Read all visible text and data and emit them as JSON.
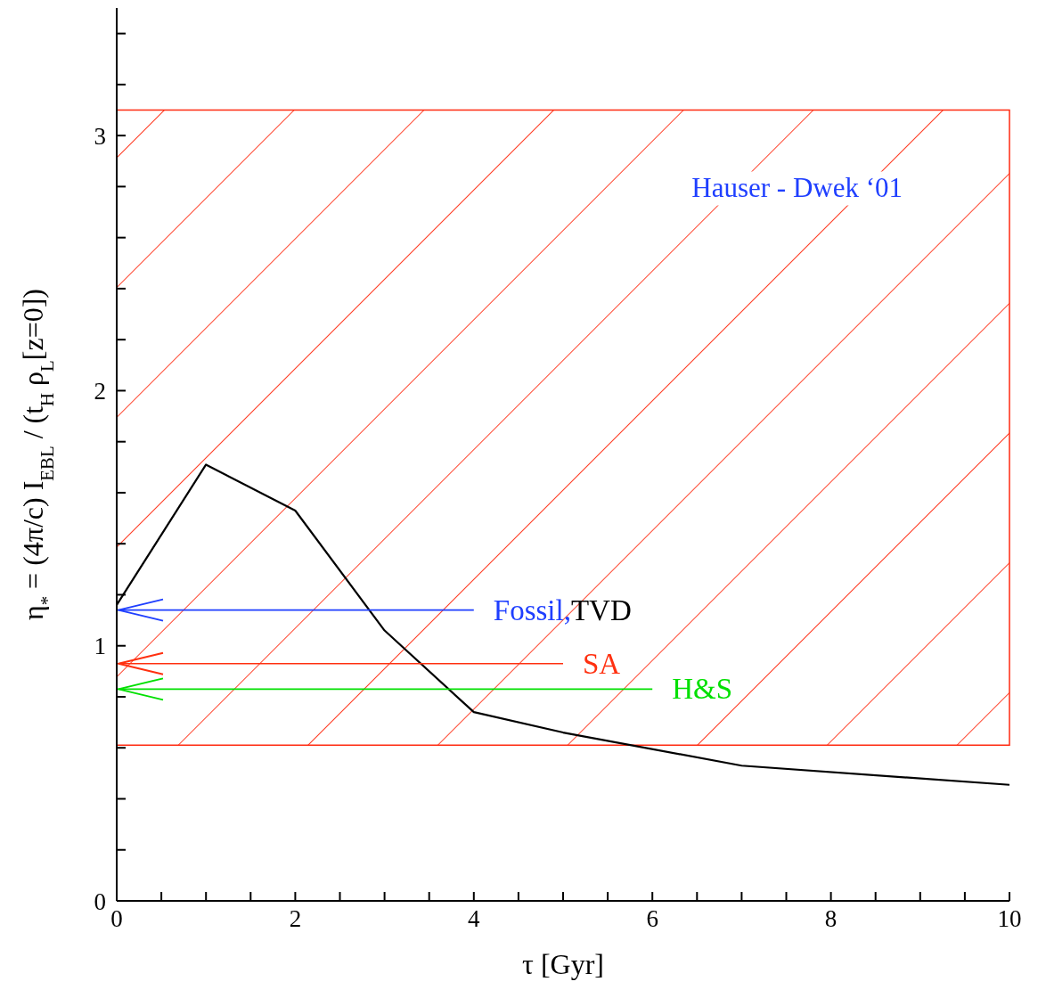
{
  "chart_data": {
    "type": "line",
    "xlabel": "τ [Gyr]",
    "ylabel": "η$_{*}$ = (4π/c) I$_{EBL}$ / (t$_{H}$ ρ$_{L}$[z=0])",
    "xlim": [
      0,
      10
    ],
    "ylim": [
      0,
      3.5
    ],
    "xticks": [
      0,
      {
        "value": 0.5,
        "label": null
      },
      {
        "value": 1,
        "label": null
      },
      {
        "value": 1.5,
        "label": null
      },
      2,
      {
        "value": 2.5,
        "label": null
      },
      {
        "value": 3,
        "label": null
      },
      {
        "value": 3.5,
        "label": null
      },
      4,
      {
        "value": 4.5,
        "label": null
      },
      {
        "value": 5,
        "label": null
      },
      {
        "value": 5.5,
        "label": null
      },
      6,
      {
        "value": 6.5,
        "label": null
      },
      {
        "value": 7,
        "label": null
      },
      {
        "value": 7.5,
        "label": null
      },
      8,
      {
        "value": 8.5,
        "label": null
      },
      {
        "value": 9,
        "label": null
      },
      {
        "value": 9.5,
        "label": null
      },
      10
    ],
    "yticks": [
      0,
      {
        "value": 0.2,
        "label": null
      },
      {
        "value": 0.4,
        "label": null
      },
      {
        "value": 0.6,
        "label": null
      },
      {
        "value": 0.8,
        "label": null
      },
      1,
      {
        "value": 1.2,
        "label": null
      },
      {
        "value": 1.4,
        "label": null
      },
      {
        "value": 1.6,
        "label": null
      },
      {
        "value": 1.8,
        "label": null
      },
      2,
      {
        "value": 2.2,
        "label": null
      },
      {
        "value": 2.4,
        "label": null
      },
      {
        "value": 2.6,
        "label": null
      },
      {
        "value": 2.8,
        "label": null
      },
      3,
      {
        "value": 3.2,
        "label": null
      },
      {
        "value": 3.4,
        "label": null
      }
    ],
    "bands": [
      {
        "axis": "y",
        "from": 0.61,
        "to": 3.1,
        "label": "Hauser - Dwek ‘01",
        "color": "#ff2a10"
      }
    ],
    "series": [
      {
        "color": "#000000",
        "x": [
          0,
          1,
          2,
          3,
          4,
          5,
          7,
          10
        ],
        "values": [
          1.16,
          1.71,
          1.53,
          1.06,
          0.74,
          0.66,
          0.53,
          0.455
        ]
      },
      {
        "name": "Fossil,",
        "color": "#1f3fff",
        "x": [
          0,
          4
        ],
        "values": [
          1.14,
          1.14
        ]
      },
      {
        "name": "SA",
        "color": "#ff3010",
        "x": [
          0,
          5
        ],
        "values": [
          0.93,
          0.93
        ]
      },
      {
        "name": "H&S",
        "color": "#00e000",
        "x": [
          0,
          6
        ],
        "values": [
          0.83,
          0.83
        ]
      }
    ],
    "annotations": [
      "TVD"
    ],
    "marker": "none",
    "line_style": "solid"
  }
}
